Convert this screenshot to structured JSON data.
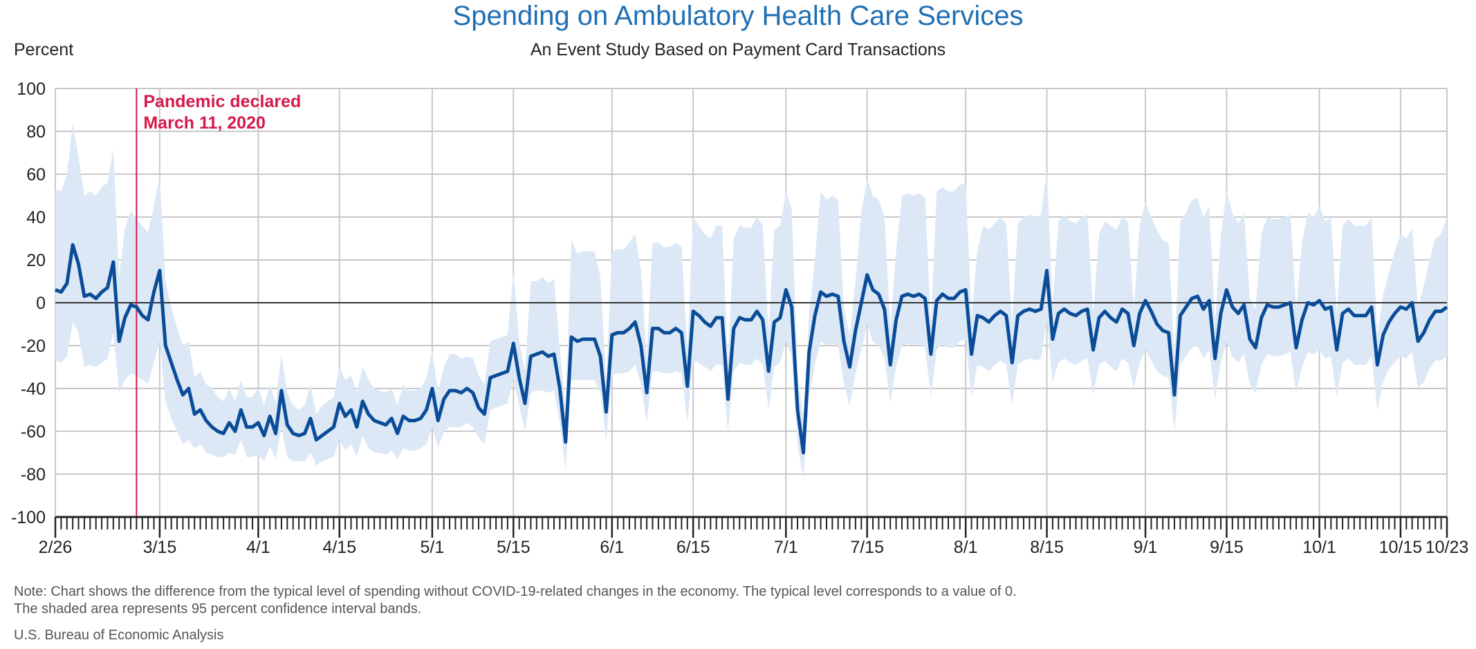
{
  "chart_data": {
    "type": "line",
    "title": "Spending on Ambulatory Health Care Services",
    "subtitle": "An Event Study Based on Payment Card Transactions",
    "ylabel": "Percent",
    "xlabel": "",
    "ylim": [
      -100,
      100
    ],
    "yticks": [
      "100",
      "80",
      "60",
      "40",
      "20",
      "0",
      "-20",
      "-40",
      "-60",
      "-80",
      "-100"
    ],
    "xtick_labels": [
      "2/26",
      "3/15",
      "4/1",
      "4/15",
      "5/1",
      "5/15",
      "6/1",
      "6/15",
      "7/1",
      "7/15",
      "8/1",
      "8/15",
      "9/1",
      "9/15",
      "10/1",
      "10/15",
      "10/23"
    ],
    "xtick_days": [
      0,
      18,
      35,
      49,
      65,
      79,
      96,
      110,
      126,
      140,
      157,
      171,
      188,
      202,
      218,
      232,
      240
    ],
    "x_start_date": "2/26",
    "x_end_day": 240,
    "grid": true,
    "annotation": {
      "day": 14,
      "line1": "Pandemic declared",
      "line2": "March 11, 2020",
      "color": "#d6184a"
    },
    "series": [
      {
        "color": "#0a4c97",
        "band_color": "#dce8f6",
        "values": [
          6,
          5,
          9,
          27,
          18,
          3,
          4,
          2,
          5,
          7,
          19,
          -18,
          -7,
          -1,
          -2,
          -6,
          -8,
          5,
          15,
          -20,
          -28,
          -36,
          -43,
          -40,
          -52,
          -50,
          -55,
          -58,
          -60,
          -61,
          -56,
          -60,
          -50,
          -58,
          -58,
          -56,
          -62,
          -53,
          -61,
          -41,
          -57,
          -61,
          -62,
          -61,
          -54,
          -64,
          -62,
          -60,
          -58,
          -47,
          -53,
          -50,
          -58,
          -46,
          -52,
          -55,
          -56,
          -57,
          -54,
          -61,
          -53,
          -55,
          -55,
          -54,
          -50,
          -40,
          -55,
          -45,
          -41,
          -41,
          -42,
          -40,
          -42,
          -49,
          -52,
          -35,
          -34,
          -33,
          -32,
          -19,
          -35,
          -47,
          -25,
          -24,
          -23,
          -25,
          -24,
          -40,
          -65,
          -16,
          -18,
          -17,
          -17,
          -17,
          -25,
          -51,
          -15,
          -14,
          -14,
          -12,
          -9,
          -20,
          -42,
          -12,
          -12,
          -14,
          -14,
          -12,
          -14,
          -39,
          -4,
          -6,
          -9,
          -11,
          -7,
          -7,
          -45,
          -12,
          -7,
          -8,
          -8,
          -4,
          -8,
          -32,
          -9,
          -7,
          6,
          -2,
          -50,
          -70,
          -23,
          -6,
          5,
          3,
          4,
          3,
          -18,
          -30,
          -13,
          0,
          13,
          6,
          4,
          -3,
          -29,
          -8,
          3,
          4,
          3,
          4,
          2,
          -24,
          1,
          4,
          2,
          2,
          5,
          6,
          -24,
          -6,
          -7,
          -9,
          -6,
          -4,
          -6,
          -28,
          -6,
          -4,
          -3,
          -4,
          -3,
          15,
          -17,
          -5,
          -3,
          -5,
          -6,
          -4,
          -3,
          -22,
          -7,
          -4,
          -7,
          -9,
          -3,
          -5,
          -20,
          -5,
          1,
          -4,
          -10,
          -13,
          -14,
          -43,
          -6,
          -2,
          2,
          3,
          -3,
          1,
          -26,
          -5,
          6,
          -2,
          -5,
          -1,
          -17,
          -21,
          -7,
          -1,
          -2,
          -2,
          -1,
          0,
          -21,
          -8,
          0,
          -1,
          1,
          -3,
          -2,
          -22,
          -5,
          -3,
          -6,
          -6,
          -6,
          -2,
          -29,
          -15,
          -9,
          -5,
          -2,
          -3,
          0,
          -18,
          -14,
          -8,
          -4,
          -4,
          -2
        ],
        "lower": [
          -27,
          -28,
          -25,
          -9,
          -14,
          -30,
          -29,
          -30,
          -28,
          -26,
          -14,
          -42,
          -36,
          -33,
          -34,
          -36,
          -38,
          -28,
          -18,
          -46,
          -54,
          -60,
          -66,
          -64,
          -68,
          -66,
          -70,
          -71,
          -72,
          -72,
          -70,
          -71,
          -64,
          -72,
          -72,
          -71,
          -74,
          -67,
          -73,
          -58,
          -72,
          -74,
          -74,
          -74,
          -70,
          -76,
          -74,
          -73,
          -72,
          -64,
          -69,
          -66,
          -72,
          -62,
          -68,
          -70,
          -70,
          -71,
          -69,
          -73,
          -68,
          -69,
          -69,
          -68,
          -66,
          -58,
          -68,
          -60,
          -58,
          -58,
          -58,
          -56,
          -58,
          -63,
          -66,
          -50,
          -49,
          -48,
          -47,
          -35,
          -48,
          -60,
          -42,
          -41,
          -41,
          -42,
          -41,
          -56,
          -78,
          -36,
          -36,
          -36,
          -36,
          -36,
          -42,
          -64,
          -34,
          -33,
          -33,
          -32,
          -29,
          -38,
          -56,
          -32,
          -32,
          -33,
          -33,
          -32,
          -33,
          -56,
          -27,
          -28,
          -30,
          -32,
          -29,
          -29,
          -60,
          -32,
          -28,
          -29,
          -29,
          -26,
          -29,
          -50,
          -30,
          -28,
          -18,
          -25,
          -66,
          -82,
          -44,
          -29,
          -18,
          -20,
          -19,
          -20,
          -38,
          -48,
          -33,
          -22,
          -10,
          -18,
          -20,
          -26,
          -47,
          -30,
          -20,
          -19,
          -20,
          -19,
          -21,
          -44,
          -22,
          -19,
          -21,
          -21,
          -18,
          -17,
          -44,
          -29,
          -30,
          -32,
          -29,
          -27,
          -29,
          -48,
          -29,
          -27,
          -26,
          -27,
          -26,
          -8,
          -37,
          -28,
          -26,
          -28,
          -29,
          -27,
          -26,
          -43,
          -29,
          -27,
          -30,
          -32,
          -26,
          -28,
          -40,
          -28,
          -22,
          -27,
          -32,
          -34,
          -35,
          -60,
          -29,
          -25,
          -21,
          -20,
          -26,
          -22,
          -45,
          -28,
          -18,
          -25,
          -28,
          -24,
          -38,
          -42,
          -29,
          -24,
          -25,
          -25,
          -24,
          -23,
          -42,
          -30,
          -23,
          -24,
          -22,
          -26,
          -25,
          -44,
          -28,
          -26,
          -29,
          -29,
          -29,
          -25,
          -50,
          -37,
          -31,
          -28,
          -25,
          -26,
          -23,
          -40,
          -37,
          -31,
          -27,
          -27,
          -25
        ],
        "upper": [
          53,
          52,
          60,
          84,
          68,
          50,
          52,
          50,
          54,
          56,
          72,
          12,
          35,
          43,
          39,
          36,
          33,
          45,
          60,
          10,
          -2,
          -12,
          -20,
          -18,
          -35,
          -32,
          -38,
          -40,
          -44,
          -46,
          -40,
          -46,
          -36,
          -44,
          -44,
          -40,
          -48,
          -38,
          -47,
          -24,
          -42,
          -48,
          -50,
          -48,
          -38,
          -52,
          -48,
          -46,
          -44,
          -30,
          -36,
          -34,
          -42,
          -30,
          -36,
          -40,
          -41,
          -42,
          -40,
          -48,
          -38,
          -41,
          -41,
          -40,
          -35,
          -22,
          -42,
          -30,
          -24,
          -24,
          -26,
          -25,
          -26,
          -34,
          -38,
          -18,
          -17,
          -16,
          -15,
          15,
          -18,
          -32,
          10,
          10,
          12,
          9,
          11,
          -22,
          -50,
          29,
          23,
          24,
          24,
          24,
          12,
          -37,
          24,
          25,
          25,
          28,
          32,
          15,
          -25,
          28,
          28,
          26,
          26,
          28,
          26,
          -22,
          40,
          36,
          32,
          30,
          36,
          36,
          -28,
          30,
          36,
          35,
          35,
          40,
          36,
          -14,
          34,
          36,
          52,
          44,
          -34,
          -55,
          -5,
          20,
          52,
          48,
          50,
          48,
          -3,
          -15,
          10,
          42,
          58,
          50,
          48,
          40,
          -12,
          24,
          50,
          51,
          50,
          51,
          49,
          -10,
          52,
          54,
          52,
          52,
          55,
          56,
          -6,
          24,
          36,
          34,
          37,
          40,
          37,
          -10,
          37,
          40,
          41,
          40,
          41,
          62,
          -1,
          38,
          41,
          38,
          37,
          40,
          41,
          -5,
          32,
          38,
          36,
          34,
          40,
          38,
          -3,
          36,
          47,
          40,
          34,
          29,
          28,
          -25,
          38,
          42,
          48,
          49,
          40,
          45,
          -10,
          31,
          52,
          42,
          37,
          42,
          2,
          -3,
          32,
          40,
          39,
          39,
          40,
          41,
          -3,
          28,
          42,
          40,
          45,
          38,
          40,
          -5,
          36,
          39,
          36,
          36,
          36,
          40,
          -15,
          4,
          14,
          24,
          32,
          30,
          35,
          -2,
          8,
          20,
          30,
          32,
          40
        ]
      }
    ],
    "zero_line": true
  },
  "notes": {
    "line1": "Note: Chart shows the difference from the typical level of spending without COVID-19-related changes in the economy. The typical level corresponds to a value of 0.",
    "line2": "The shaded area represents 95 percent confidence interval bands.",
    "source": "U.S. Bureau of Economic Analysis"
  }
}
